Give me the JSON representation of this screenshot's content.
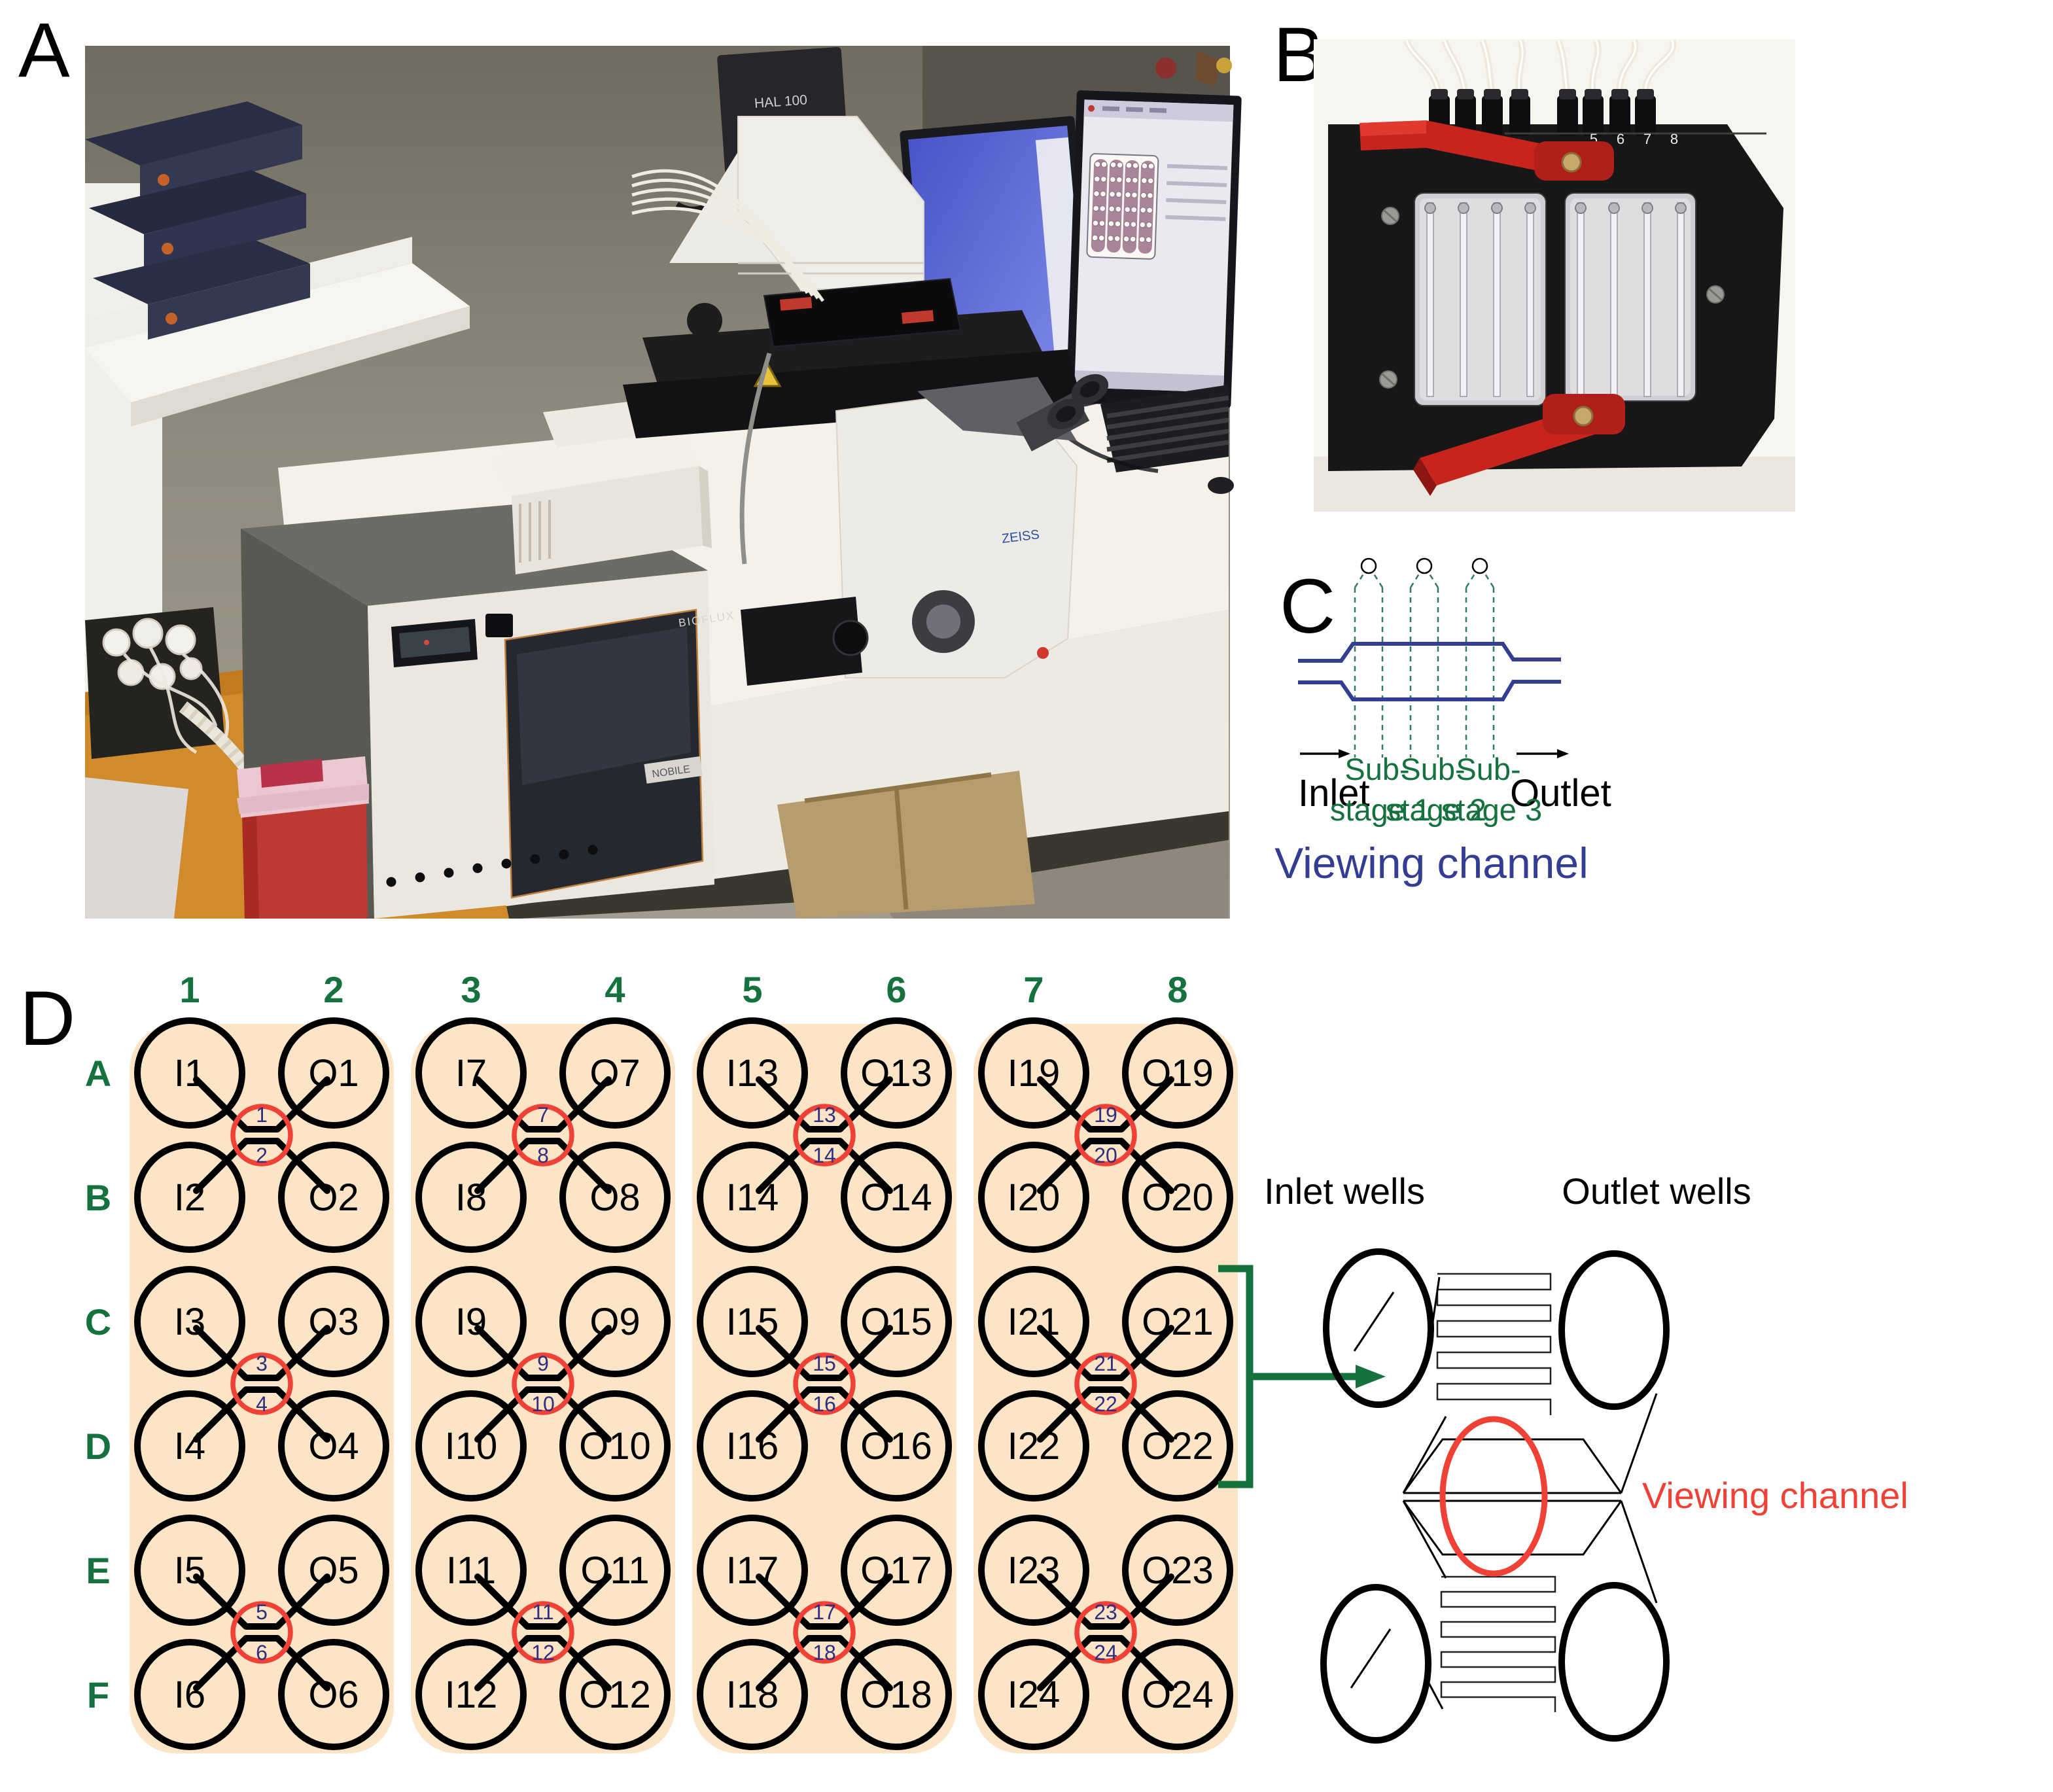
{
  "figure": {
    "panel_labels": {
      "a": "A",
      "b": "B",
      "c": "C",
      "d": "D"
    }
  },
  "panel_a": {
    "labels": {
      "hal_lamp": "HAL 100",
      "instrument": "BIOFLUX",
      "door_label": "NOBILE",
      "stand_label": "ZEISS"
    }
  },
  "panel_b": {
    "port_numbers": [
      "5",
      "6",
      "7",
      "8"
    ]
  },
  "panel_c": {
    "inlet_label": "Inlet",
    "outlet_label": "Outlet",
    "substage_prefix": "Sub-",
    "substage_lines": [
      "stage 1",
      "stage 2",
      "stage 3"
    ],
    "title": "Viewing channel"
  },
  "panel_d": {
    "column_headers": [
      "1",
      "2",
      "3",
      "4",
      "5",
      "6",
      "7",
      "8"
    ],
    "row_labels": [
      "A",
      "B",
      "C",
      "D",
      "E",
      "F"
    ],
    "groups": [
      {
        "columns": [
          "1",
          "2"
        ],
        "modules": [
          {
            "inlet_top": "I1",
            "outlet_top": "O1",
            "channel_top": "1",
            "inlet_bottom": "I2",
            "outlet_bottom": "O2",
            "channel_bottom": "2"
          },
          {
            "inlet_top": "I3",
            "outlet_top": "O3",
            "channel_top": "3",
            "inlet_bottom": "I4",
            "outlet_bottom": "O4",
            "channel_bottom": "4"
          },
          {
            "inlet_top": "I5",
            "outlet_top": "O5",
            "channel_top": "5",
            "inlet_bottom": "I6",
            "outlet_bottom": "O6",
            "channel_bottom": "6"
          }
        ]
      },
      {
        "columns": [
          "3",
          "4"
        ],
        "modules": [
          {
            "inlet_top": "I7",
            "outlet_top": "O7",
            "channel_top": "7",
            "inlet_bottom": "I8",
            "outlet_bottom": "O8",
            "channel_bottom": "8"
          },
          {
            "inlet_top": "I9",
            "outlet_top": "O9",
            "channel_top": "9",
            "inlet_bottom": "I10",
            "outlet_bottom": "O10",
            "channel_bottom": "10"
          },
          {
            "inlet_top": "I11",
            "outlet_top": "O11",
            "channel_top": "11",
            "inlet_bottom": "I12",
            "outlet_bottom": "O12",
            "channel_bottom": "12"
          }
        ]
      },
      {
        "columns": [
          "5",
          "6"
        ],
        "modules": [
          {
            "inlet_top": "I13",
            "outlet_top": "O13",
            "channel_top": "13",
            "inlet_bottom": "I14",
            "outlet_bottom": "O14",
            "channel_bottom": "14"
          },
          {
            "inlet_top": "I15",
            "outlet_top": "O15",
            "channel_top": "15",
            "inlet_bottom": "I16",
            "outlet_bottom": "O16",
            "channel_bottom": "16"
          },
          {
            "inlet_top": "I17",
            "outlet_top": "O17",
            "channel_top": "17",
            "inlet_bottom": "I18",
            "outlet_bottom": "O18",
            "channel_bottom": "18"
          }
        ]
      },
      {
        "columns": [
          "7",
          "8"
        ],
        "modules": [
          {
            "inlet_top": "I19",
            "outlet_top": "O19",
            "channel_top": "19",
            "inlet_bottom": "I20",
            "outlet_bottom": "O20",
            "channel_bottom": "20"
          },
          {
            "inlet_top": "I21",
            "outlet_top": "O21",
            "channel_top": "21",
            "inlet_bottom": "I22",
            "outlet_bottom": "O22",
            "channel_bottom": "22"
          },
          {
            "inlet_top": "I23",
            "outlet_top": "O23",
            "channel_top": "23",
            "inlet_bottom": "I24",
            "outlet_bottom": "O24",
            "channel_bottom": "24"
          }
        ]
      }
    ],
    "inset": {
      "inlet_wells_label": "Inlet wells",
      "outlet_wells_label": "Outlet wells",
      "viewing_channel_label": "Viewing channel"
    }
  },
  "colors": {
    "green": "#15713E",
    "peach": "#FBE5C6",
    "red": "#F04137",
    "navy": "#2F2F7F",
    "blue": "#333D93",
    "dashed_green": "#2F7D5B",
    "black": "#000000"
  }
}
